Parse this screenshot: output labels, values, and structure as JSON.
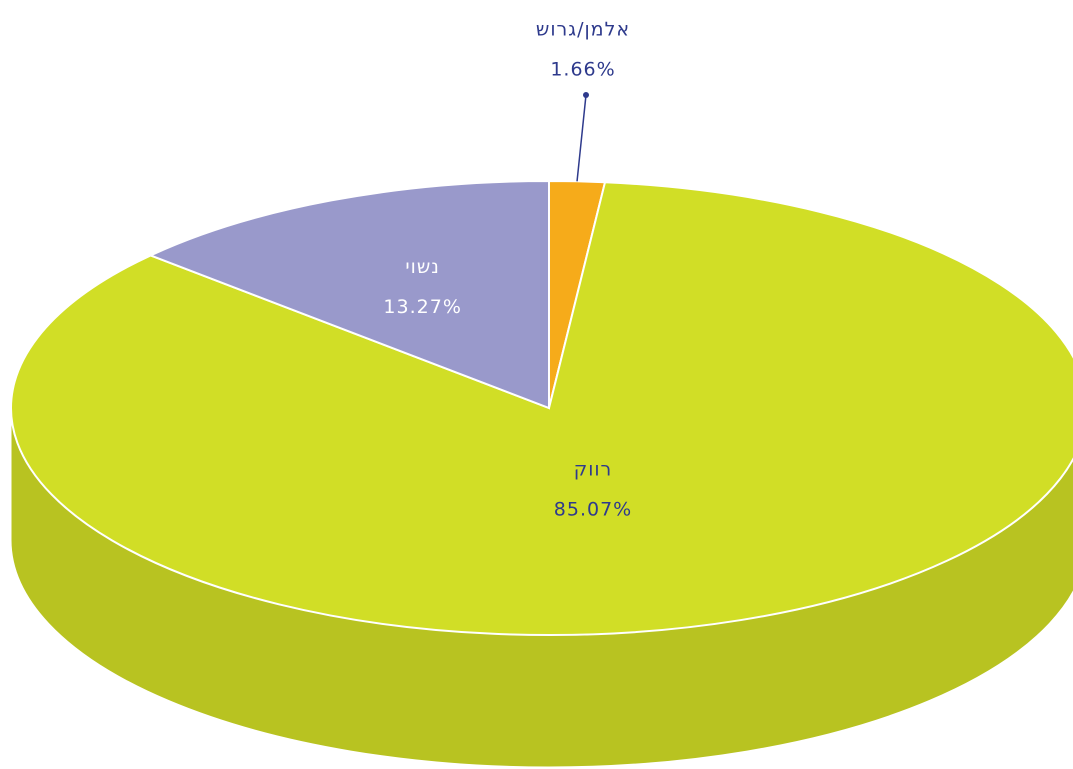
{
  "chart_data": {
    "type": "pie3d",
    "categories": [
      "אלמן/גרוש",
      "רווק",
      "נשוי"
    ],
    "values": [
      1.66,
      85.07,
      13.27
    ],
    "value_labels": [
      "1.66%",
      "85.07%",
      "13.27%"
    ],
    "colors": [
      "#f6ab1a",
      "#d1de26",
      "#9999cb"
    ]
  }
}
